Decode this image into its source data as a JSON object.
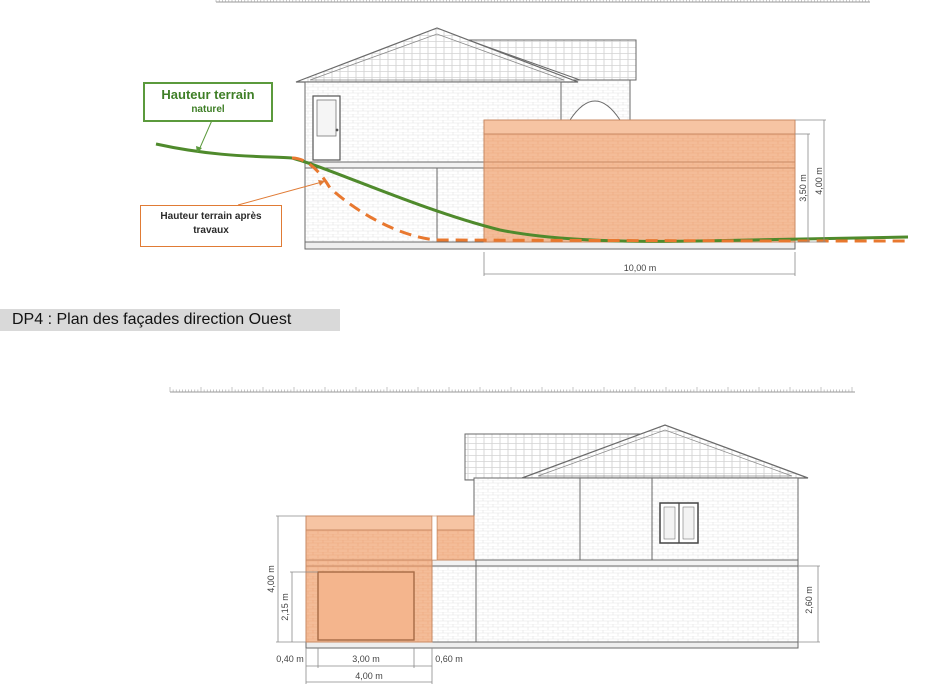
{
  "callouts": {
    "natural_ground": {
      "line1": "Hauteur terrain",
      "line2": "naturel"
    },
    "ground_after_works": {
      "line1": "Hauteur terrain après",
      "line2": "travaux"
    }
  },
  "section_title": "DP4 : Plan des façades direction Ouest",
  "top_elevation": {
    "dimensions": {
      "height_1": "3,50 m",
      "height_2": "4,00 m",
      "width": "10,00 m"
    }
  },
  "west_elevation": {
    "dimensions": {
      "height_left_total": "4,00 m",
      "height_left_door": "2,15 m",
      "height_right": "2,60 m",
      "width_margin_left": "0,40 m",
      "width_door": "3,00 m",
      "width_margin_right": "0,60 m",
      "width_total": "4,00 m"
    }
  },
  "colors": {
    "extension_fill": "#f4bc98",
    "natural_ground": "#4f8a2c",
    "after_works": "#e8782f",
    "wall_line": "#707070"
  }
}
